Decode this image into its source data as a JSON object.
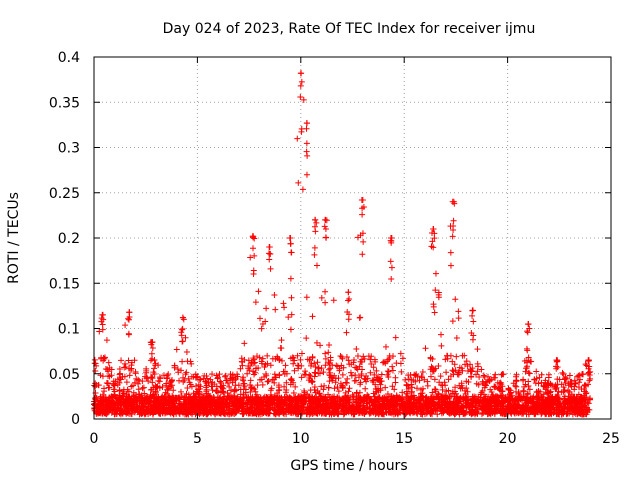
{
  "chart_data": {
    "type": "scatter",
    "title": "Day 024 of 2023, Rate Of TEC Index for receiver ijmu",
    "xlabel": "GPS time / hours",
    "ylabel": "ROTI / TECUs",
    "xlim": [
      0,
      25
    ],
    "ylim": [
      0,
      0.4
    ],
    "x_ticks": [
      "0",
      "5",
      "10",
      "15",
      "20",
      "25"
    ],
    "y_ticks": [
      "0",
      "0.05",
      "0.1",
      "0.15",
      "0.2",
      "0.25",
      "0.3",
      "0.35",
      "0.4"
    ],
    "grid": true,
    "marker": "+",
    "color": "#ff0000",
    "series": [
      {
        "name": "ROTI",
        "x_range": [
          0,
          24
        ],
        "typical_range": [
          0.005,
          0.05
        ],
        "peaks": [
          {
            "x": 0.4,
            "y": 0.115
          },
          {
            "x": 1.7,
            "y": 0.118
          },
          {
            "x": 2.8,
            "y": 0.085
          },
          {
            "x": 4.3,
            "y": 0.112
          },
          {
            "x": 7.7,
            "y": 0.202
          },
          {
            "x": 8.5,
            "y": 0.19
          },
          {
            "x": 9.5,
            "y": 0.2
          },
          {
            "x": 10.0,
            "y": 0.382
          },
          {
            "x": 10.3,
            "y": 0.327
          },
          {
            "x": 10.7,
            "y": 0.22
          },
          {
            "x": 11.2,
            "y": 0.22
          },
          {
            "x": 12.3,
            "y": 0.14
          },
          {
            "x": 13.0,
            "y": 0.242
          },
          {
            "x": 14.4,
            "y": 0.2
          },
          {
            "x": 16.4,
            "y": 0.21
          },
          {
            "x": 17.4,
            "y": 0.24
          },
          {
            "x": 18.3,
            "y": 0.12
          },
          {
            "x": 21.0,
            "y": 0.105
          },
          {
            "x": 22.4,
            "y": 0.065
          },
          {
            "x": 23.9,
            "y": 0.065
          }
        ]
      }
    ]
  }
}
